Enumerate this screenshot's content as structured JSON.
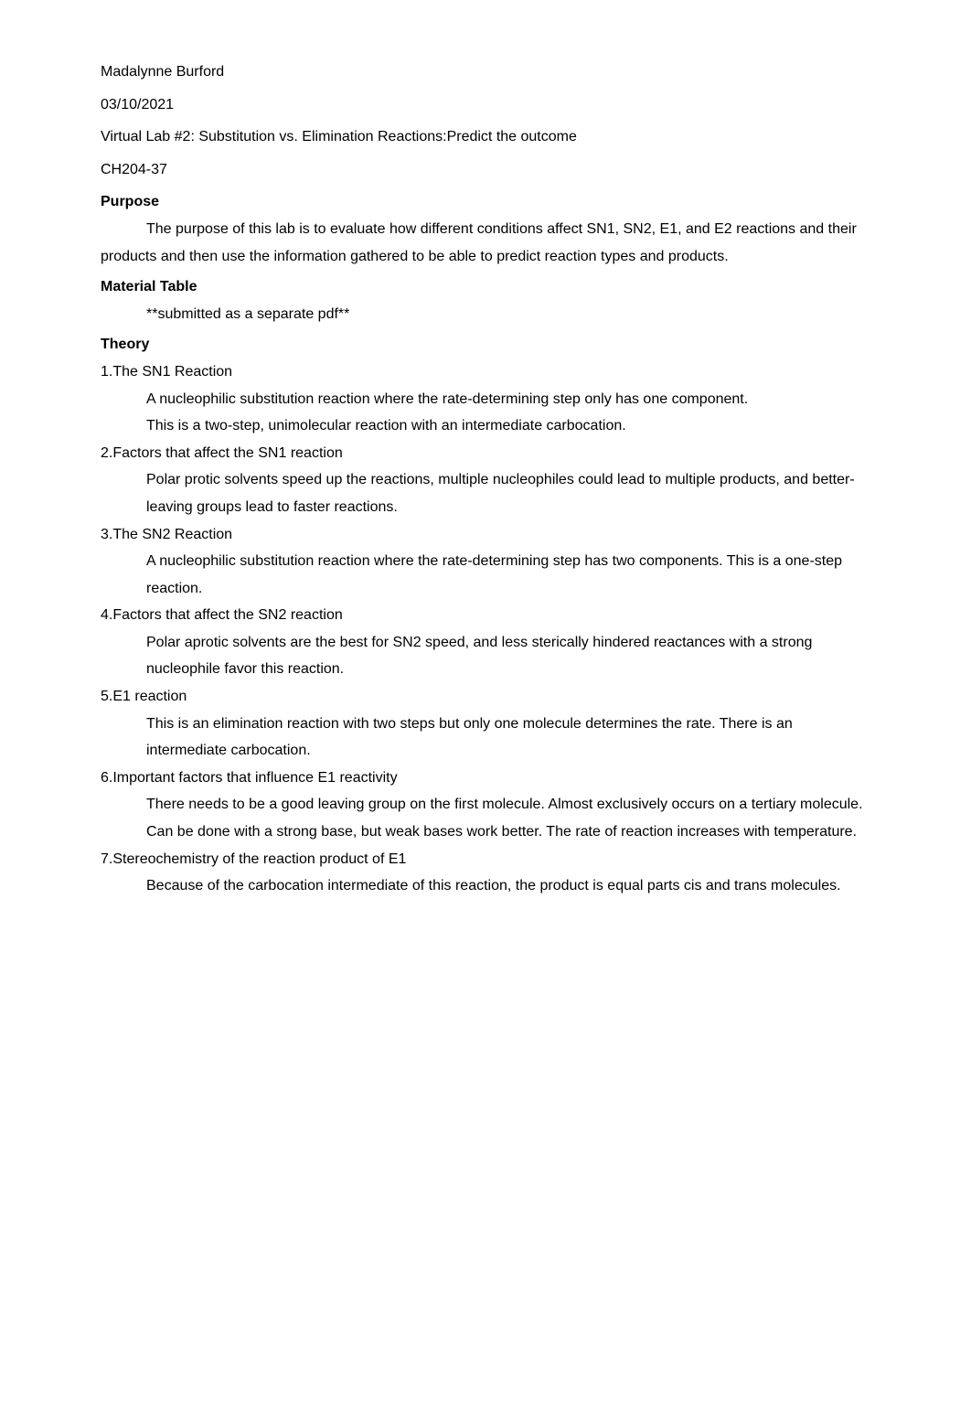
{
  "header": {
    "name": "Madalynne Burford",
    "date": "03/10/2021",
    "title": "Virtual Lab #2: Substitution vs. Elimination Reactions:Predict the outcome",
    "course": "CH204-37"
  },
  "sections": {
    "purpose": {
      "heading": "Purpose",
      "body": "The purpose of this lab is to evaluate how different conditions affect SN1, SN2, E1, and E2 reactions and their products and then use the information gathered to be able to predict reaction types and products."
    },
    "material": {
      "heading": "Material Table",
      "body": "**submitted as a separate pdf**"
    },
    "theory": {
      "heading": "Theory",
      "items": [
        {
          "label": "1.The SN1 Reaction",
          "lines": [
            "A nucleophilic substitution reaction where the rate-determining step only has one component.",
            "This is a two-step, unimolecular reaction with an intermediate carbocation."
          ]
        },
        {
          "label": "2.Factors that affect the SN1 reaction",
          "lines": [
            "Polar protic solvents speed up the reactions, multiple nucleophiles could lead to multiple products, and better-leaving groups lead to faster reactions."
          ]
        },
        {
          "label": "3.The SN2 Reaction",
          "lines": [
            "A nucleophilic substitution reaction where the rate-determining step has two components. This is a one-step reaction."
          ]
        },
        {
          "label": "4.Factors that affect the SN2 reaction",
          "lines": [
            "Polar aprotic solvents are the best for SN2 speed, and less sterically hindered reactances with a strong nucleophile favor this reaction."
          ]
        },
        {
          "label": "5.E1 reaction",
          "lines": [
            "This is an elimination reaction with two steps but only one molecule determines the rate. There is an intermediate carbocation."
          ]
        },
        {
          "label": "6.Important factors that influence E1 reactivity",
          "lines": [
            "There needs to be a good leaving group on the first molecule. Almost exclusively occurs on a tertiary molecule.  Can be done with a strong base, but weak bases work better. The rate of reaction increases with temperature."
          ]
        },
        {
          "label": "7.Stereochemistry of the reaction product of E1",
          "lines": [
            "Because of the carbocation intermediate of this reaction, the product is equal parts cis and trans molecules."
          ]
        }
      ]
    }
  }
}
